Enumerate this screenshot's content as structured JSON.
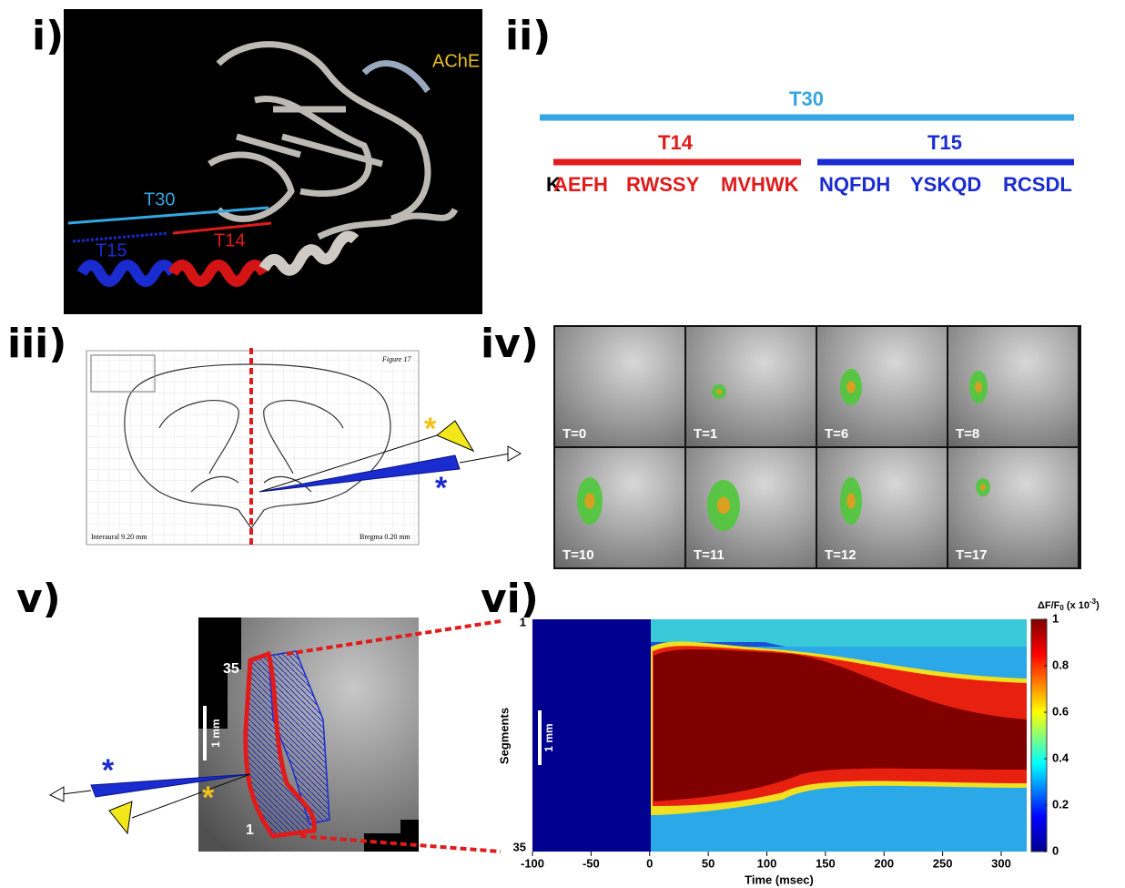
{
  "panels": {
    "i": {
      "label": "i)",
      "protein": "AChE",
      "t30": "T30",
      "t14": "T14",
      "t15": "T15"
    },
    "ii": {
      "label": "ii)",
      "t30": "T30",
      "t14": "T14",
      "t15": "T15",
      "sequence": [
        "K",
        "AEFH",
        "RWSSY",
        "MVHWK",
        "NQFDH",
        "YSKQD",
        "RCSDL"
      ]
    },
    "iii": {
      "label": "iii)",
      "figure": "Figure 17",
      "interaural": "Interaural 9.20 mm",
      "bregma": "Bregma 0.20 mm"
    },
    "iv": {
      "label": "iv)",
      "frames": [
        "T=0",
        "T=1",
        "T=6",
        "T=8",
        "T=10",
        "T=11",
        "T=12",
        "T=17"
      ]
    },
    "v": {
      "label": "v)",
      "top_segment": "35",
      "bottom_segment": "1",
      "scale": "1 mm"
    },
    "vi": {
      "label": "vi)",
      "y_axis_label": "Segments",
      "y_top": "1",
      "y_bottom": "35",
      "scale": "1 mm",
      "x_axis_label": "Time (msec)",
      "xticks": [
        -100,
        -50,
        0,
        50,
        100,
        150,
        200,
        250,
        300
      ],
      "colorbar_label": {
        "main": "ΔF/F",
        "sub": "0",
        "mid": " (x 10",
        "sup": "-3",
        "end": ")"
      },
      "colorbar_ticks": [
        0,
        0.2,
        0.4,
        0.6,
        0.8,
        1
      ]
    }
  }
}
